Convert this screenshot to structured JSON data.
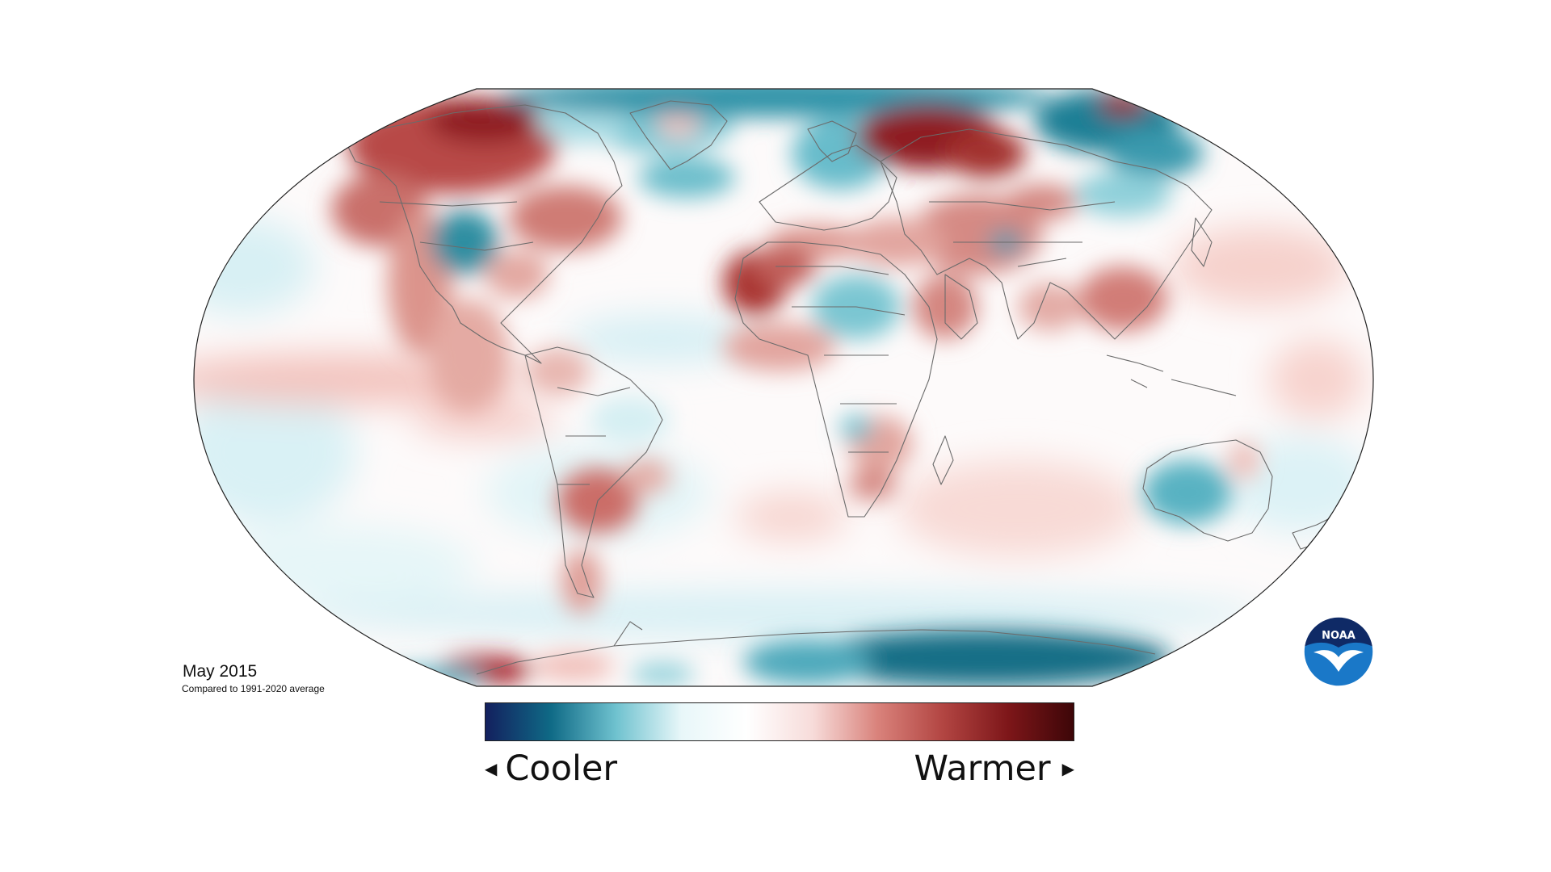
{
  "caption": {
    "period": "May 2015",
    "baseline": "Compared to 1991-2020 average"
  },
  "legend": {
    "low_label": "Cooler",
    "high_label": "Warmer",
    "low_arrow": "◀",
    "high_arrow": "▶",
    "colors": [
      "#13205e",
      "#0f6a86",
      "#6fc2cf",
      "#e8f7f9",
      "#ffffff",
      "#f7dcda",
      "#d9827b",
      "#b24542",
      "#7d1619",
      "#3d0608"
    ]
  },
  "logo": {
    "text": "NOAA",
    "icon": "noaa-logo"
  },
  "map": {
    "projection": "robinson",
    "colors": {
      "neutral": "#ffffff",
      "warm_light": "#f8d9d5",
      "warm": "#df9a92",
      "warm_strong": "#bf5a55",
      "warm_very": "#961f22",
      "cool_light": "#dff4f7",
      "cool": "#8fd0da",
      "cool_strong": "#2e8da0",
      "cool_very": "#0f6880",
      "coastline": "#6b6b6b"
    }
  }
}
